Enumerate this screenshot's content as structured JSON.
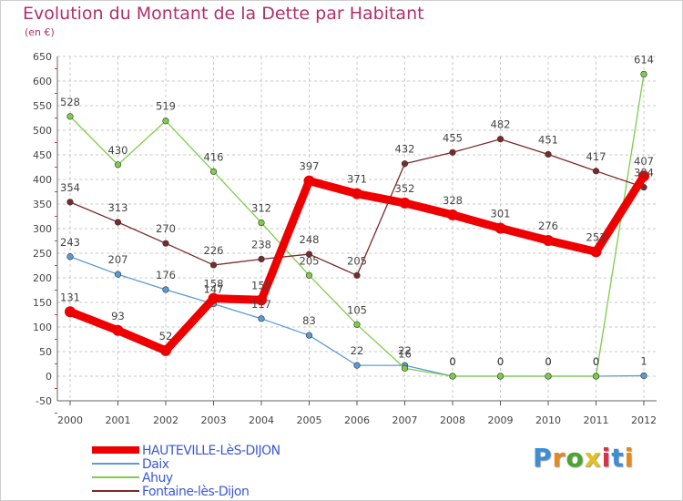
{
  "title": "Evolution du Montant de la Dette par Habitant",
  "subtitle": "(en €)",
  "logo": {
    "text": "Proxiti",
    "colors": [
      "#3a8fd6",
      "#e28a1c",
      "#48a52f",
      "#e2c21c",
      "#d8334a",
      "#3a8fd6",
      "#e28a1c"
    ]
  },
  "chart_data": {
    "type": "line",
    "x": [
      "2000",
      "2001",
      "2002",
      "2003",
      "2004",
      "2005",
      "2006",
      "2007",
      "2008",
      "2009",
      "2010",
      "2011",
      "2012"
    ],
    "ylim": [
      -50,
      650
    ],
    "yticks": [
      "-50",
      "0",
      "50",
      "100",
      "150",
      "200",
      "250",
      "300",
      "350",
      "400",
      "450",
      "500",
      "550",
      "600",
      "650"
    ],
    "grid": true,
    "legend_position": "bottom-left",
    "series": [
      {
        "name": "HAUTEVILLE-LèS-DIJON",
        "color": "#ee0000",
        "values": [
          131,
          93,
          52,
          158,
          155,
          397,
          371,
          352,
          328,
          301,
          276,
          253,
          407
        ],
        "labels": [
          "131",
          "93",
          "52",
          "158",
          "155",
          "397",
          "371",
          "352",
          "328",
          "301",
          "276",
          "253",
          "407"
        ]
      },
      {
        "name": "Daix",
        "color": "#5b9bd5",
        "values": [
          243,
          207,
          176,
          147,
          117,
          83,
          22,
          22,
          0,
          0,
          0,
          0,
          1
        ],
        "labels": [
          "243",
          "207",
          "176",
          "147",
          "117",
          "83",
          "22",
          "22",
          "0",
          "0",
          "0",
          "0",
          "1"
        ]
      },
      {
        "name": "Ahuy",
        "color": "#7fcc4a",
        "values": [
          528,
          430,
          519,
          416,
          312,
          205,
          105,
          16,
          0,
          0,
          0,
          0,
          614
        ],
        "labels": [
          "528",
          "430",
          "519",
          "416",
          "312",
          "205",
          "105",
          "16",
          "0",
          "0",
          "0",
          "0",
          "614"
        ]
      },
      {
        "name": "Fontaine-lès-Dijon",
        "color": "#7a2a2a",
        "values": [
          354,
          313,
          270,
          226,
          238,
          248,
          205,
          432,
          455,
          482,
          451,
          417,
          384
        ],
        "labels": [
          "354",
          "313",
          "270",
          "226",
          "238",
          "248",
          "205",
          "432",
          "455",
          "482",
          "451",
          "417",
          "384"
        ]
      }
    ]
  }
}
